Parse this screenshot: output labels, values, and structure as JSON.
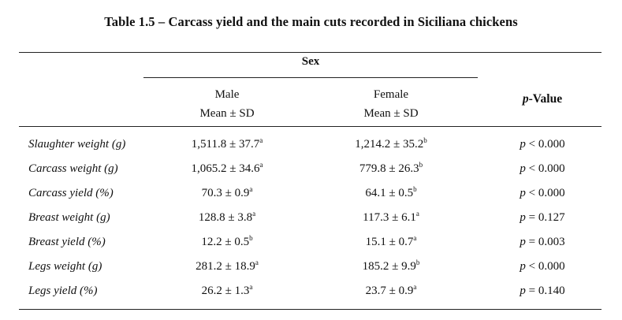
{
  "title": "Table 1.5 – Carcass yield and the main cuts recorded in Siciliana chickens",
  "header": {
    "sex": "Sex",
    "male": "Male",
    "female": "Female",
    "stat": "Mean ± SD",
    "pvalue_p": "p",
    "pvalue_rest": "-Value"
  },
  "rows": [
    {
      "label": "Slaughter weight (g)",
      "male": "1,511.8 ± 37.7",
      "male_sup": "a",
      "female": "1,214.2 ± 35.2",
      "female_sup": "b",
      "p_op": "< 0.000"
    },
    {
      "label": "Carcass weight (g)",
      "male": "1,065.2 ± 34.6",
      "male_sup": "a",
      "female": "779.8 ± 26.3",
      "female_sup": "b",
      "p_op": "< 0.000"
    },
    {
      "label": "Carcass yield (%)",
      "male": "70.3 ± 0.9",
      "male_sup": "a",
      "female": "64.1 ± 0.5",
      "female_sup": "b",
      "p_op": "< 0.000"
    },
    {
      "label": "Breast weight (g)",
      "male": "128.8 ± 3.8",
      "male_sup": "a",
      "female": "117.3 ± 6.1",
      "female_sup": "a",
      "p_op": "= 0.127"
    },
    {
      "label": "Breast yield (%)",
      "male": "12.2 ± 0.5",
      "male_sup": "b",
      "female": "15.1 ± 0.7",
      "female_sup": "a",
      "p_op": "= 0.003"
    },
    {
      "label": "Legs weight (g)",
      "male": "281.2 ± 18.9",
      "male_sup": "a",
      "female": "185.2 ± 9.9",
      "female_sup": "b",
      "p_op": "< 0.000"
    },
    {
      "label": "Legs yield (%)",
      "male": "26.2 ± 1.3",
      "male_sup": "a",
      "female": "23.7 ± 0.9",
      "female_sup": "a",
      "p_op": "= 0.140"
    }
  ]
}
